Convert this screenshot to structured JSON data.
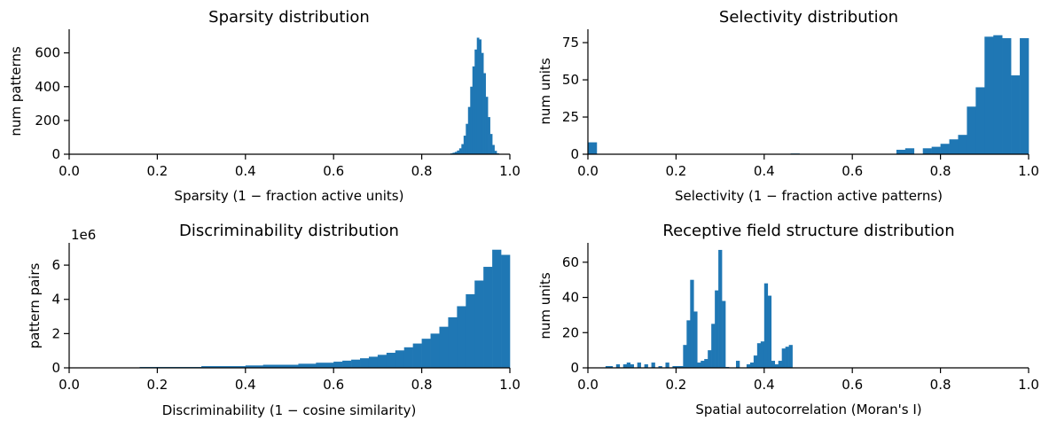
{
  "chart_data": [
    {
      "type": "histogram",
      "title": "Sparsity distribution",
      "xlabel": "Sparsity (1 −  fraction active units)",
      "ylabel": "num patterns",
      "xlim": [
        0,
        1
      ],
      "ylim": [
        0,
        740
      ],
      "xticks": [
        "0.0",
        "0.2",
        "0.4",
        "0.6",
        "0.8",
        "1.0"
      ],
      "xtick_values": [
        0,
        0.2,
        0.4,
        0.6,
        0.8,
        1.0
      ],
      "yticks": [
        "0",
        "200",
        "400",
        "600"
      ],
      "ytick_values": [
        0,
        200,
        400,
        600
      ],
      "color": "#1f77b4",
      "bins": [
        {
          "x0": 0.86,
          "x1": 0.865,
          "y": 2
        },
        {
          "x0": 0.865,
          "x1": 0.87,
          "y": 5
        },
        {
          "x0": 0.87,
          "x1": 0.875,
          "y": 9
        },
        {
          "x0": 0.875,
          "x1": 0.88,
          "y": 14
        },
        {
          "x0": 0.88,
          "x1": 0.885,
          "y": 22
        },
        {
          "x0": 0.885,
          "x1": 0.89,
          "y": 35
        },
        {
          "x0": 0.89,
          "x1": 0.895,
          "y": 60
        },
        {
          "x0": 0.895,
          "x1": 0.9,
          "y": 110
        },
        {
          "x0": 0.9,
          "x1": 0.905,
          "y": 180
        },
        {
          "x0": 0.905,
          "x1": 0.91,
          "y": 280
        },
        {
          "x0": 0.91,
          "x1": 0.915,
          "y": 400
        },
        {
          "x0": 0.915,
          "x1": 0.92,
          "y": 520
        },
        {
          "x0": 0.92,
          "x1": 0.925,
          "y": 620
        },
        {
          "x0": 0.925,
          "x1": 0.93,
          "y": 690
        },
        {
          "x0": 0.93,
          "x1": 0.935,
          "y": 680
        },
        {
          "x0": 0.935,
          "x1": 0.94,
          "y": 600
        },
        {
          "x0": 0.94,
          "x1": 0.945,
          "y": 480
        },
        {
          "x0": 0.945,
          "x1": 0.95,
          "y": 340
        },
        {
          "x0": 0.95,
          "x1": 0.955,
          "y": 220
        },
        {
          "x0": 0.955,
          "x1": 0.96,
          "y": 120
        },
        {
          "x0": 0.96,
          "x1": 0.965,
          "y": 55
        },
        {
          "x0": 0.965,
          "x1": 0.97,
          "y": 20
        },
        {
          "x0": 0.97,
          "x1": 0.975,
          "y": 6
        }
      ]
    },
    {
      "type": "histogram",
      "title": "Selectivity distribution",
      "xlabel": "Selectivity (1 −  fraction active patterns)",
      "ylabel": "num units",
      "xlim": [
        0,
        1
      ],
      "ylim": [
        0,
        84
      ],
      "xticks": [
        "0.0",
        "0.2",
        "0.4",
        "0.6",
        "0.8",
        "1.0"
      ],
      "xtick_values": [
        0,
        0.2,
        0.4,
        0.6,
        0.8,
        1.0
      ],
      "yticks": [
        "0",
        "25",
        "50",
        "75"
      ],
      "ytick_values": [
        0,
        25,
        50,
        75
      ],
      "color": "#1f77b4",
      "bins": [
        {
          "x0": 0.0,
          "x1": 0.02,
          "y": 8
        },
        {
          "x0": 0.46,
          "x1": 0.48,
          "y": 0.5
        },
        {
          "x0": 0.7,
          "x1": 0.72,
          "y": 3
        },
        {
          "x0": 0.72,
          "x1": 0.74,
          "y": 4
        },
        {
          "x0": 0.76,
          "x1": 0.78,
          "y": 4
        },
        {
          "x0": 0.78,
          "x1": 0.8,
          "y": 5
        },
        {
          "x0": 0.8,
          "x1": 0.82,
          "y": 7
        },
        {
          "x0": 0.82,
          "x1": 0.84,
          "y": 10
        },
        {
          "x0": 0.84,
          "x1": 0.86,
          "y": 13
        },
        {
          "x0": 0.86,
          "x1": 0.88,
          "y": 32
        },
        {
          "x0": 0.88,
          "x1": 0.9,
          "y": 45
        },
        {
          "x0": 0.9,
          "x1": 0.92,
          "y": 79
        },
        {
          "x0": 0.92,
          "x1": 0.94,
          "y": 80
        },
        {
          "x0": 0.94,
          "x1": 0.96,
          "y": 78
        },
        {
          "x0": 0.96,
          "x1": 0.98,
          "y": 53
        },
        {
          "x0": 0.98,
          "x1": 1.0,
          "y": 78
        }
      ]
    },
    {
      "type": "histogram",
      "title": "Discriminability distribution",
      "xlabel": "Discriminability (1 −  cosine similarity)",
      "ylabel": "pattern pairs",
      "offset_label": "1e6",
      "xlim": [
        0,
        1
      ],
      "ylim": [
        0,
        7.3
      ],
      "xticks": [
        "0.0",
        "0.2",
        "0.4",
        "0.6",
        "0.8",
        "1.0"
      ],
      "xtick_values": [
        0,
        0.2,
        0.4,
        0.6,
        0.8,
        1.0
      ],
      "yticks": [
        "0",
        "2",
        "4",
        "6"
      ],
      "ytick_values": [
        0,
        2,
        4,
        6
      ],
      "color": "#1f77b4",
      "bins": [
        {
          "x0": 0.16,
          "x1": 0.3,
          "y": 0.05
        },
        {
          "x0": 0.3,
          "x1": 0.4,
          "y": 0.1
        },
        {
          "x0": 0.4,
          "x1": 0.44,
          "y": 0.14
        },
        {
          "x0": 0.44,
          "x1": 0.52,
          "y": 0.18
        },
        {
          "x0": 0.52,
          "x1": 0.56,
          "y": 0.24
        },
        {
          "x0": 0.56,
          "x1": 0.6,
          "y": 0.3
        },
        {
          "x0": 0.6,
          "x1": 0.62,
          "y": 0.36
        },
        {
          "x0": 0.62,
          "x1": 0.64,
          "y": 0.42
        },
        {
          "x0": 0.64,
          "x1": 0.66,
          "y": 0.48
        },
        {
          "x0": 0.66,
          "x1": 0.68,
          "y": 0.56
        },
        {
          "x0": 0.68,
          "x1": 0.7,
          "y": 0.65
        },
        {
          "x0": 0.7,
          "x1": 0.72,
          "y": 0.76
        },
        {
          "x0": 0.72,
          "x1": 0.74,
          "y": 0.88
        },
        {
          "x0": 0.74,
          "x1": 0.76,
          "y": 1.02
        },
        {
          "x0": 0.76,
          "x1": 0.78,
          "y": 1.2
        },
        {
          "x0": 0.78,
          "x1": 0.8,
          "y": 1.42
        },
        {
          "x0": 0.8,
          "x1": 0.82,
          "y": 1.7
        },
        {
          "x0": 0.82,
          "x1": 0.84,
          "y": 2.0
        },
        {
          "x0": 0.84,
          "x1": 0.86,
          "y": 2.4
        },
        {
          "x0": 0.86,
          "x1": 0.88,
          "y": 2.95
        },
        {
          "x0": 0.88,
          "x1": 0.9,
          "y": 3.6
        },
        {
          "x0": 0.9,
          "x1": 0.92,
          "y": 4.3
        },
        {
          "x0": 0.92,
          "x1": 0.94,
          "y": 5.1
        },
        {
          "x0": 0.94,
          "x1": 0.96,
          "y": 5.9
        },
        {
          "x0": 0.96,
          "x1": 0.98,
          "y": 6.9
        },
        {
          "x0": 0.98,
          "x1": 1.0,
          "y": 6.6
        }
      ]
    },
    {
      "type": "histogram",
      "title": "Receptive field structure distribution",
      "xlabel": "Spatial autocorrelation (Moran's I)",
      "ylabel": "num units",
      "xlim": [
        0,
        1
      ],
      "ylim": [
        0,
        71
      ],
      "xticks": [
        "0.0",
        "0.2",
        "0.4",
        "0.6",
        "0.8",
        "1.0"
      ],
      "xtick_values": [
        0,
        0.2,
        0.4,
        0.6,
        0.8,
        1.0
      ],
      "yticks": [
        "0",
        "20",
        "40",
        "60"
      ],
      "ytick_values": [
        0,
        20,
        40,
        60
      ],
      "color": "#1f77b4",
      "bins": [
        {
          "x0": 0.04,
          "x1": 0.048,
          "y": 1
        },
        {
          "x0": 0.048,
          "x1": 0.056,
          "y": 1
        },
        {
          "x0": 0.064,
          "x1": 0.072,
          "y": 2
        },
        {
          "x0": 0.08,
          "x1": 0.088,
          "y": 2
        },
        {
          "x0": 0.088,
          "x1": 0.096,
          "y": 3
        },
        {
          "x0": 0.096,
          "x1": 0.104,
          "y": 2
        },
        {
          "x0": 0.112,
          "x1": 0.12,
          "y": 3
        },
        {
          "x0": 0.128,
          "x1": 0.136,
          "y": 2
        },
        {
          "x0": 0.144,
          "x1": 0.152,
          "y": 3
        },
        {
          "x0": 0.16,
          "x1": 0.168,
          "y": 1
        },
        {
          "x0": 0.176,
          "x1": 0.184,
          "y": 3
        },
        {
          "x0": 0.192,
          "x1": 0.2,
          "y": 1
        },
        {
          "x0": 0.2,
          "x1": 0.208,
          "y": 1
        },
        {
          "x0": 0.208,
          "x1": 0.216,
          "y": 1
        },
        {
          "x0": 0.216,
          "x1": 0.224,
          "y": 13
        },
        {
          "x0": 0.224,
          "x1": 0.232,
          "y": 27
        },
        {
          "x0": 0.232,
          "x1": 0.24,
          "y": 50
        },
        {
          "x0": 0.24,
          "x1": 0.248,
          "y": 32
        },
        {
          "x0": 0.248,
          "x1": 0.256,
          "y": 3
        },
        {
          "x0": 0.256,
          "x1": 0.264,
          "y": 4
        },
        {
          "x0": 0.264,
          "x1": 0.272,
          "y": 5
        },
        {
          "x0": 0.272,
          "x1": 0.28,
          "y": 10
        },
        {
          "x0": 0.28,
          "x1": 0.288,
          "y": 25
        },
        {
          "x0": 0.288,
          "x1": 0.296,
          "y": 44
        },
        {
          "x0": 0.296,
          "x1": 0.304,
          "y": 67
        },
        {
          "x0": 0.304,
          "x1": 0.312,
          "y": 38
        },
        {
          "x0": 0.312,
          "x1": 0.32,
          "y": 0.5
        },
        {
          "x0": 0.336,
          "x1": 0.344,
          "y": 4
        },
        {
          "x0": 0.36,
          "x1": 0.368,
          "y": 2
        },
        {
          "x0": 0.368,
          "x1": 0.376,
          "y": 3
        },
        {
          "x0": 0.376,
          "x1": 0.384,
          "y": 7
        },
        {
          "x0": 0.384,
          "x1": 0.392,
          "y": 14
        },
        {
          "x0": 0.392,
          "x1": 0.4,
          "y": 15
        },
        {
          "x0": 0.4,
          "x1": 0.408,
          "y": 48
        },
        {
          "x0": 0.408,
          "x1": 0.416,
          "y": 41
        },
        {
          "x0": 0.416,
          "x1": 0.424,
          "y": 4
        },
        {
          "x0": 0.424,
          "x1": 0.432,
          "y": 2
        },
        {
          "x0": 0.432,
          "x1": 0.44,
          "y": 4
        },
        {
          "x0": 0.44,
          "x1": 0.448,
          "y": 11
        },
        {
          "x0": 0.448,
          "x1": 0.456,
          "y": 12
        },
        {
          "x0": 0.456,
          "x1": 0.464,
          "y": 13
        }
      ]
    }
  ]
}
